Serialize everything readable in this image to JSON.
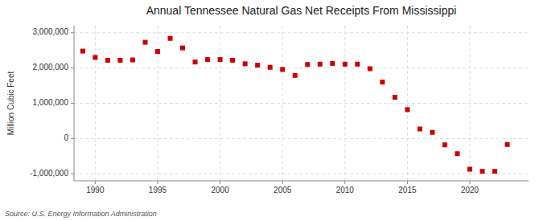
{
  "chart_data": {
    "type": "scatter",
    "title": "Annual Tennessee Natural Gas Net Receipts From Mississippi",
    "y_label": "Million Cubic Feet",
    "annotations": [
      "Source: U.S. Energy Information Administration"
    ],
    "x": [
      1989,
      1990,
      1991,
      1992,
      1993,
      1994,
      1995,
      1996,
      1997,
      1998,
      1999,
      2000,
      2001,
      2002,
      2003,
      2004,
      2005,
      2006,
      2007,
      2008,
      2009,
      2010,
      2011,
      2012,
      2013,
      2014,
      2015,
      2016,
      2017,
      2018,
      2019,
      2020,
      2021,
      2022,
      2023
    ],
    "values": [
      2480000,
      2300000,
      2220000,
      2220000,
      2230000,
      2730000,
      2470000,
      2840000,
      2570000,
      2170000,
      2240000,
      2240000,
      2220000,
      2120000,
      2080000,
      2020000,
      1960000,
      1790000,
      2100000,
      2110000,
      2130000,
      2110000,
      2110000,
      1980000,
      1600000,
      1170000,
      820000,
      270000,
      175000,
      -180000,
      -430000,
      -870000,
      -930000,
      -930000,
      -170000
    ],
    "color": "#cc0000",
    "marker": "square",
    "xlim": [
      1988.3,
      2024.7
    ],
    "xticks": [
      1990,
      1995,
      2000,
      2005,
      2010,
      2015,
      2020
    ],
    "ylim": [
      -1200000,
      3200000
    ],
    "yticks": [
      {
        "value": -1000000,
        "label": "-1,000,000"
      },
      0,
      {
        "value": 1000000,
        "label": "1,000,000"
      },
      {
        "value": 2000000,
        "label": "2,000,000"
      },
      {
        "value": 3000000,
        "label": "3,000,000"
      }
    ],
    "grid": true
  }
}
